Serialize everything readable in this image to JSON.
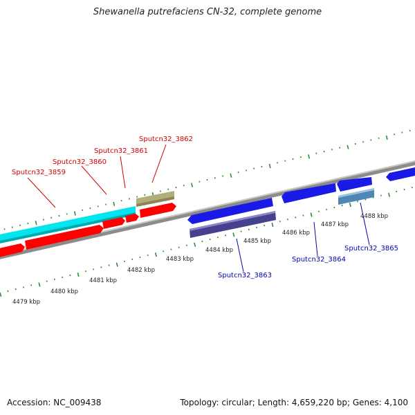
{
  "title": "Shewanella putrefaciens CN-32, complete genome",
  "footer": {
    "accession": "Accession: NC_009438",
    "summary": "Topology: circular; Length: 4,659,220 bp; Genes: 4,100"
  },
  "colors": {
    "forward_cds": "#ff0000",
    "cyan_feature": "#00e5ee",
    "khaki_feature": "#b3ad78",
    "reverse_cds": "#1010e0",
    "dark_feature": "#45418c",
    "steel_feature": "#4f86b3",
    "backbone": "#8c8c8c",
    "tick": "#2e8b2e",
    "forward_label": "#d00000",
    "reverse_label": "#0000b0"
  },
  "scale_labels": [
    "4479 kbp",
    "4480 kbp",
    "4481 kbp",
    "4482 kbp",
    "4483 kbp",
    "4484 kbp",
    "4485 kbp",
    "4486 kbp",
    "4487 kbp",
    "4488 kbp"
  ],
  "forward_genes": [
    {
      "label": "Sputcn32_3859",
      "color": "#d00000"
    },
    {
      "label": "Sputcn32_3860",
      "color": "#d00000"
    },
    {
      "label": "Sputcn32_3861",
      "color": "#d00000"
    },
    {
      "label": "Sputcn32_3862",
      "color": "#d00000"
    }
  ],
  "reverse_genes": [
    {
      "label": "Sputcn32_3863",
      "color": "#0000b0"
    },
    {
      "label": "Sputcn32_3864",
      "color": "#0000b0"
    },
    {
      "label": "Sputcn32_3865",
      "color": "#0000b0"
    }
  ]
}
